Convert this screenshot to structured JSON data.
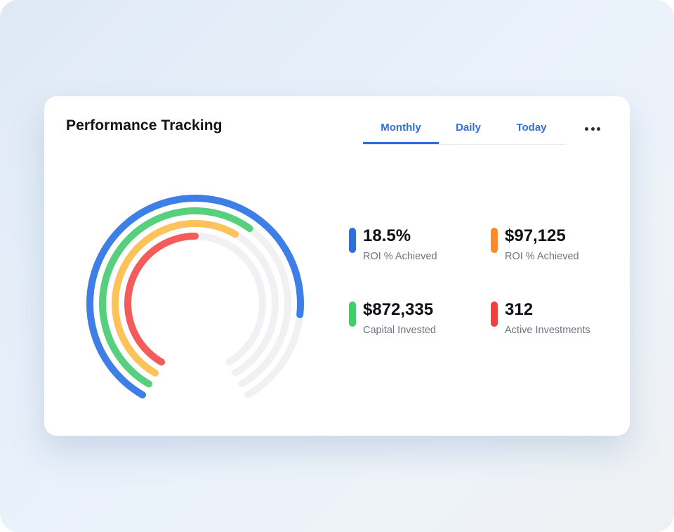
{
  "card": {
    "title": "Performance Tracking"
  },
  "tabs": [
    {
      "label": "Monthly",
      "active": true
    },
    {
      "label": "Daily",
      "active": false
    },
    {
      "label": "Today",
      "active": false
    }
  ],
  "more_menu_icon": "ellipsis-horizontal-icon",
  "colors": {
    "accent": "#2f6fdc",
    "blue": "#3d7fe6",
    "green": "#56d07c",
    "yellow": "#fcc35c",
    "red": "#f45b5b",
    "orange": "#ff8a2a",
    "track": "#f1f1f3"
  },
  "stats": [
    {
      "value": "18.5%",
      "label": "ROI % Achieved",
      "color": "#2f6fdc"
    },
    {
      "value": "$97,125",
      "label": "ROI % Achieved",
      "color": "#ff8a2a"
    },
    {
      "value": "$872,335",
      "label": "Capital Invested",
      "color": "#3ecf68"
    },
    {
      "value": "312",
      "label": "Active Investments",
      "color": "#f2403f"
    }
  ],
  "gauge": {
    "rings": [
      {
        "name": "blue",
        "color": "#3d7fe6",
        "progress": 0.82
      },
      {
        "name": "green",
        "color": "#56d07c",
        "progress": 0.62
      },
      {
        "name": "yellow",
        "color": "#fcc35c",
        "progress": 0.6
      },
      {
        "name": "red",
        "color": "#f45b5b",
        "progress": 0.5
      }
    ]
  }
}
